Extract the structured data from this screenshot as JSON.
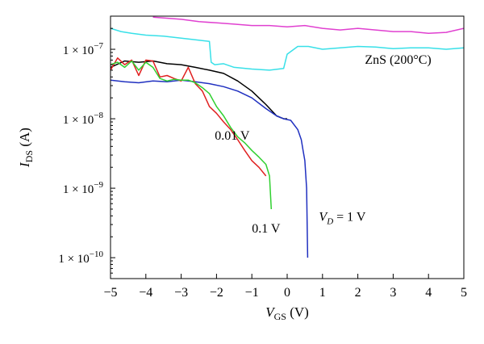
{
  "chart_data": {
    "type": "line",
    "xlabel_main": "V",
    "xlabel_sub": "GS",
    "xlabel_unit": "(V)",
    "ylabel_main": "I",
    "ylabel_sub": "DS",
    "ylabel_unit": "(A)",
    "xlim": [
      -5,
      5
    ],
    "ylim": [
      5e-11,
      3e-07
    ],
    "yscale": "log",
    "grid": false,
    "x_ticks": [
      -5,
      -4,
      -3,
      -2,
      -1,
      0,
      1,
      2,
      3,
      4,
      5
    ],
    "x_tick_labels": [
      "−5",
      "−4",
      "−3",
      "−2",
      "−1",
      "0",
      "1",
      "2",
      "3",
      "4",
      "5"
    ],
    "y_ticks": [
      {
        "value": 1e-07,
        "mantissa": "1 × 10",
        "exp": "−7"
      },
      {
        "value": 1e-08,
        "mantissa": "1 × 10",
        "exp": "−8"
      },
      {
        "value": 1e-09,
        "mantissa": "1 × 10",
        "exp": "−9"
      },
      {
        "value": 1e-10,
        "mantissa": "1 × 10",
        "exp": "−10"
      }
    ],
    "annotations": [
      {
        "id": "zns",
        "text": "ZnS (200°C)",
        "x": 2.2,
        "y": 6.2e-08
      },
      {
        "id": "v001",
        "text": "0.01 V",
        "x": -2.05,
        "y": 5e-09
      },
      {
        "id": "v01",
        "text": "0.1 V",
        "x": -1.0,
        "y": 2.3e-10
      },
      {
        "id": "vd",
        "parts": [
          "V",
          "D",
          " = 1 V"
        ],
        "x": 0.9,
        "y": 3.4e-10
      }
    ],
    "series": [
      {
        "id": "magenta",
        "color": "#e040d0",
        "x": [
          -3.8,
          -3.0,
          -2.5,
          -2.0,
          -1.5,
          -1.0,
          -0.5,
          0.0,
          0.5,
          1.0,
          1.5,
          2.0,
          2.5,
          3.0,
          3.5,
          4.0,
          4.5,
          5.0
        ],
        "y": [
          2.9e-07,
          2.7e-07,
          2.5e-07,
          2.4e-07,
          2.3e-07,
          2.2e-07,
          2.2e-07,
          2.1e-07,
          2.2e-07,
          2e-07,
          1.9e-07,
          2e-07,
          1.9e-07,
          1.8e-07,
          1.8e-07,
          1.7e-07,
          1.75e-07,
          2e-07
        ]
      },
      {
        "id": "cyan",
        "color": "#38e0e8",
        "x": [
          -5.0,
          -4.7,
          -4.4,
          -4.0,
          -3.5,
          -3.0,
          -2.5,
          -2.2,
          -2.15,
          -2.05,
          -1.8,
          -1.5,
          -1.0,
          -0.5,
          -0.1,
          0.0,
          0.3,
          0.6,
          1.0,
          1.5,
          2.0,
          2.5,
          3.0,
          3.5,
          4.0,
          4.5,
          5.0
        ],
        "y": [
          2e-07,
          1.8e-07,
          1.7e-07,
          1.6e-07,
          1.55e-07,
          1.45e-07,
          1.35e-07,
          1.3e-07,
          6.5e-08,
          6e-08,
          6.2e-08,
          5.5e-08,
          5.2e-08,
          5e-08,
          5.3e-08,
          8.5e-08,
          1.1e-07,
          1.1e-07,
          1e-07,
          1.05e-07,
          1.1e-07,
          1.08e-07,
          1.02e-07,
          1.05e-07,
          1.05e-07,
          1e-07,
          1.05e-07
        ]
      },
      {
        "id": "black",
        "color": "#000000",
        "x": [
          -5.0,
          -4.6,
          -4.2,
          -3.8,
          -3.4,
          -3.0,
          -2.6,
          -2.2,
          -1.8,
          -1.4,
          -1.0,
          -0.6,
          -0.3,
          -0.1,
          0.0
        ],
        "y": [
          5.5e-08,
          6.8e-08,
          6.5e-08,
          6.8e-08,
          6.2e-08,
          6e-08,
          5.5e-08,
          5e-08,
          4.5e-08,
          3.5e-08,
          2.5e-08,
          1.6e-08,
          1.1e-08,
          1e-08,
          1e-08
        ]
      },
      {
        "id": "blue",
        "color": "#2030c0",
        "x": [
          -5.0,
          -4.6,
          -4.2,
          -3.8,
          -3.4,
          -3.0,
          -2.6,
          -2.2,
          -1.8,
          -1.4,
          -1.0,
          -0.6,
          -0.3,
          -0.1,
          0.1,
          0.3,
          0.4,
          0.45,
          0.5,
          0.55,
          0.58
        ],
        "y": [
          3.6e-08,
          3.4e-08,
          3.3e-08,
          3.5e-08,
          3.4e-08,
          3.6e-08,
          3.4e-08,
          3.2e-08,
          2.9e-08,
          2.5e-08,
          2e-08,
          1.4e-08,
          1.1e-08,
          1e-08,
          9.5e-09,
          7e-09,
          5e-09,
          3.5e-09,
          2.5e-09,
          1e-09,
          1e-10
        ]
      },
      {
        "id": "red",
        "color": "#e02020",
        "x": [
          -5.0,
          -4.8,
          -4.6,
          -4.4,
          -4.2,
          -4.0,
          -3.8,
          -3.6,
          -3.4,
          -3.2,
          -3.0,
          -2.8,
          -2.6,
          -2.4,
          -2.2,
          -2.0,
          -1.8,
          -1.6,
          -1.4,
          -1.2,
          -1.0,
          -0.8,
          -0.6
        ],
        "y": [
          5e-08,
          7.5e-08,
          6e-08,
          7e-08,
          4.2e-08,
          7e-08,
          6.8e-08,
          4e-08,
          4.2e-08,
          3.8e-08,
          3.5e-08,
          5.5e-08,
          3.2e-08,
          2.5e-08,
          1.5e-08,
          1.2e-08,
          9e-09,
          7e-09,
          5e-09,
          3.5e-09,
          2.5e-09,
          2e-09,
          1.5e-09
        ]
      },
      {
        "id": "green",
        "color": "#30d030",
        "x": [
          -5.0,
          -4.8,
          -4.6,
          -4.4,
          -4.2,
          -4.0,
          -3.8,
          -3.6,
          -3.4,
          -3.2,
          -3.0,
          -2.8,
          -2.6,
          -2.4,
          -2.2,
          -2.0,
          -1.8,
          -1.6,
          -1.4,
          -1.2,
          -1.0,
          -0.8,
          -0.6,
          -0.5,
          -0.45
        ],
        "y": [
          6e-08,
          6.5e-08,
          5.5e-08,
          6.8e-08,
          5e-08,
          6.5e-08,
          5.5e-08,
          3.8e-08,
          3.5e-08,
          3.7e-08,
          3.6e-08,
          3.6e-08,
          3.3e-08,
          2.8e-08,
          2.3e-08,
          1.5e-08,
          1.1e-08,
          7.5e-09,
          5.5e-09,
          4.5e-09,
          3.5e-09,
          2.8e-09,
          2.2e-09,
          1.5e-09,
          5e-10
        ]
      }
    ]
  }
}
